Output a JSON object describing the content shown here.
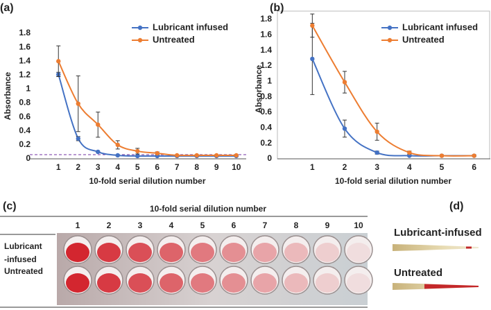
{
  "chart_data": [
    {
      "type": "line",
      "label": "(a)",
      "ylabel": "Absorbance",
      "xlabel": "10-fold serial dilution number",
      "categories": [
        "1",
        "2",
        "3",
        "4",
        "5",
        "6",
        "7",
        "8",
        "9",
        "10"
      ],
      "ylim": [
        0,
        1.8
      ],
      "yticks": [
        0,
        0.2,
        0.4,
        0.6,
        0.8,
        1,
        1.2,
        1.4,
        1.6,
        1.8
      ],
      "frame": false,
      "reference_line": 0.06,
      "reference_color": "#7030a0",
      "series": [
        {
          "name": "Lubricant infused",
          "color": "#4472c4",
          "values": [
            1.21,
            0.29,
            0.1,
            0.05,
            0.04,
            0.04,
            0.04,
            0.04,
            0.04,
            0.04
          ],
          "errors": [
            0.03,
            0.03,
            0.01,
            0.01,
            0.01,
            0.01,
            0.01,
            0.01,
            0.01,
            0.01
          ]
        },
        {
          "name": "Untreated",
          "color": "#ed7d31",
          "values": [
            1.4,
            0.79,
            0.49,
            0.2,
            0.11,
            0.08,
            0.05,
            0.05,
            0.05,
            0.05
          ],
          "errors": [
            0.22,
            0.4,
            0.18,
            0.06,
            0.04,
            0.02,
            0.01,
            0.01,
            0.01,
            0.01
          ]
        }
      ]
    },
    {
      "type": "line",
      "label": "(b)",
      "ylabel": "Absorbance",
      "xlabel": "10-fold serial dilution number",
      "categories": [
        "1",
        "2",
        "3",
        "4",
        "5",
        "6"
      ],
      "ylim": [
        0,
        1.8
      ],
      "yticks": [
        0,
        0.2,
        0.4,
        0.6,
        0.8,
        1,
        1.2,
        1.4,
        1.6,
        1.8
      ],
      "frame": true,
      "series": [
        {
          "name": "Lubricant infused",
          "color": "#4472c4",
          "values": [
            1.29,
            0.39,
            0.08,
            0.04,
            0.04,
            0.04
          ],
          "errors": [
            0.46,
            0.11,
            0.02,
            0.01,
            0.01,
            0.01
          ]
        },
        {
          "name": "Untreated",
          "color": "#ed7d31",
          "values": [
            1.72,
            0.99,
            0.35,
            0.08,
            0.04,
            0.04
          ],
          "errors": [
            0.15,
            0.14,
            0.11,
            0.02,
            0.01,
            0.01
          ]
        }
      ]
    }
  ],
  "panel_c": {
    "label": "(c)",
    "title": "10-fold serial dilution number",
    "columns": [
      "1",
      "2",
      "3",
      "4",
      "5",
      "6",
      "7",
      "8",
      "9",
      "10"
    ],
    "rows": [
      {
        "lines": [
          "Lubricant",
          "-infused"
        ]
      },
      {
        "lines": [
          "Untreated"
        ]
      }
    ]
  },
  "panel_d": {
    "label": "(d)",
    "rows": [
      "Lubricant-infused",
      "Untreated"
    ]
  }
}
